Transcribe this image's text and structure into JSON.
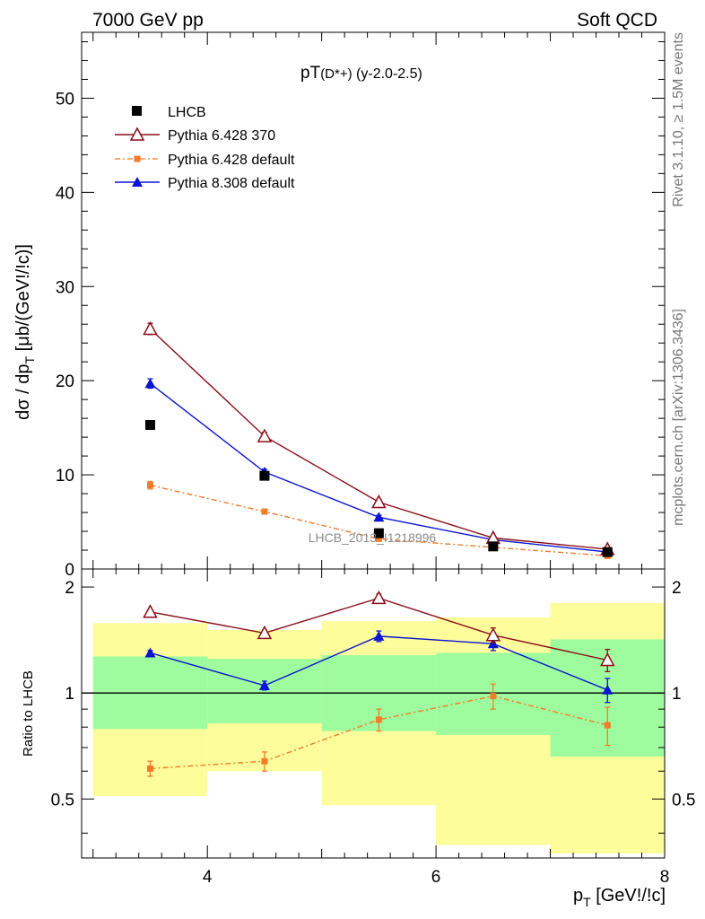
{
  "header": {
    "left": "7000 GeV pp",
    "right": "Soft QCD",
    "side_top": "Rivet 3.1.10, ≥ 1.5M events",
    "side_bottom": "mcplots.cern.ch [arXiv:1306.3436]",
    "watermark": "LHCB_2013_I1218996"
  },
  "colors": {
    "lhcb": "#000000",
    "p6_370": "#8b0d19",
    "p6_default": "#f47b28",
    "p8_default": "#0a14d2",
    "band_inner": "#9efc9e",
    "band_outer": "#fdfd9c"
  },
  "chart_data": [
    {
      "type": "line",
      "title": "pT(D*+) (y-2.0-2.5)",
      "title_main": "pT",
      "title_sup": "(D*+)",
      "title_rest": " (y-2.0-2.5)",
      "ylabel": "dσ / dp_T [μb/(GeV!/!c)]",
      "xlim": [
        2.9,
        8.0
      ],
      "ylim": [
        0,
        57
      ],
      "y_ticks": [
        0,
        10,
        20,
        30,
        40,
        50
      ],
      "x": [
        3.5,
        4.5,
        5.5,
        6.5,
        7.5
      ],
      "legend_position": "top-left",
      "series": [
        {
          "name": "LHCB",
          "values": [
            15.3,
            9.9,
            3.8,
            2.4,
            1.8
          ],
          "marker": "square"
        },
        {
          "name": "Pythia 6.428 370",
          "values": [
            25.5,
            14.1,
            7.1,
            3.3,
            2.1
          ],
          "errors": [
            0.6,
            0.4,
            0.3,
            0.2,
            0.1
          ],
          "marker": "open-triangle"
        },
        {
          "name": "Pythia 6.428 default",
          "values": [
            8.9,
            6.1,
            3.2,
            2.3,
            1.4
          ],
          "errors": [
            0.4,
            0.2,
            0.2,
            0.1,
            0.1
          ],
          "marker": "small-square",
          "dashed": true
        },
        {
          "name": "Pythia 8.308 default",
          "values": [
            19.7,
            10.3,
            5.5,
            3.1,
            1.8
          ],
          "errors": [
            0.5,
            0.3,
            0.2,
            0.1,
            0.1
          ],
          "marker": "filled-triangle"
        }
      ]
    },
    {
      "type": "line",
      "ylabel": "Ratio to LHCB",
      "xlabel": "p_T [GeV!/!c]",
      "xlim": [
        2.9,
        8.0
      ],
      "ylim": [
        0.34,
        2.25
      ],
      "y_scale": "log",
      "y_ticks": [
        0.5,
        1,
        2
      ],
      "x_ticks": [
        4,
        6,
        8
      ],
      "x_edges": [
        3,
        4,
        5,
        6,
        7,
        8
      ],
      "band_inner": [
        [
          0.79,
          1.27
        ],
        [
          0.82,
          1.25
        ],
        [
          0.78,
          1.28
        ],
        [
          0.76,
          1.3
        ],
        [
          0.66,
          1.42
        ]
      ],
      "band_outer": [
        [
          0.51,
          1.58
        ],
        [
          0.6,
          1.51
        ],
        [
          0.48,
          1.6
        ],
        [
          0.37,
          1.64
        ],
        [
          0.35,
          1.8
        ]
      ],
      "x": [
        3.5,
        4.5,
        5.5,
        6.5,
        7.5
      ],
      "series": [
        {
          "name": "Pythia 6.428 370",
          "values": [
            1.7,
            1.48,
            1.86,
            1.46,
            1.24
          ],
          "errors": [
            0.02,
            0.03,
            0.05,
            0.07,
            0.09
          ]
        },
        {
          "name": "Pythia 6.428 default",
          "values": [
            0.61,
            0.64,
            0.84,
            0.98,
            0.81
          ],
          "errors": [
            0.03,
            0.04,
            0.06,
            0.08,
            0.1
          ]
        },
        {
          "name": "Pythia 8.308 default",
          "values": [
            1.3,
            1.05,
            1.45,
            1.38,
            1.02
          ],
          "errors": [
            0.02,
            0.03,
            0.05,
            0.06,
            0.08
          ]
        }
      ]
    }
  ]
}
